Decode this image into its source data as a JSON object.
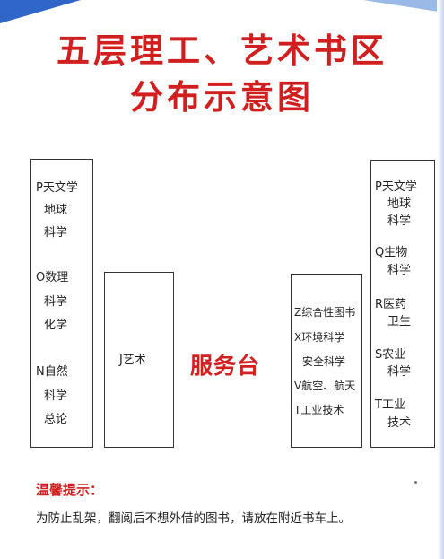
{
  "title": {
    "line1": "五层理工、艺术书区",
    "line2": "分布示意图"
  },
  "shelves": {
    "left": {
      "p_code": "P天文学",
      "p_line2": "地球",
      "p_line3": "科学",
      "o_code": "O数理",
      "o_line2": "科学",
      "o_line3": "化学",
      "n_code": "N自然",
      "n_line2": "科学",
      "n_line3": "总论"
    },
    "j": {
      "label": "J艺术"
    },
    "z": {
      "line1": "Z综合性图书",
      "line2": "X环境科学",
      "line3": "安全科学",
      "line4": "V航空、航天",
      "line5": "T工业技术"
    },
    "right": {
      "p_code": "P天文学",
      "p_line2": "地球",
      "p_line3": "科学",
      "q_code": "Q生物",
      "q_line2": "科学",
      "r_code": "R医药",
      "r_line2": "卫生",
      "s_code": "S农业",
      "s_line2": "科学",
      "t_code": "T工业",
      "t_line2": "技术"
    }
  },
  "service_desk": "服务台",
  "tip": {
    "title": "温馨提示：",
    "text": "为防止乱架，翻阅后不想外借的图书，请放在附近书车上。"
  },
  "colors": {
    "title": "#d11f1f",
    "accent_blue": "#2f66c7"
  }
}
